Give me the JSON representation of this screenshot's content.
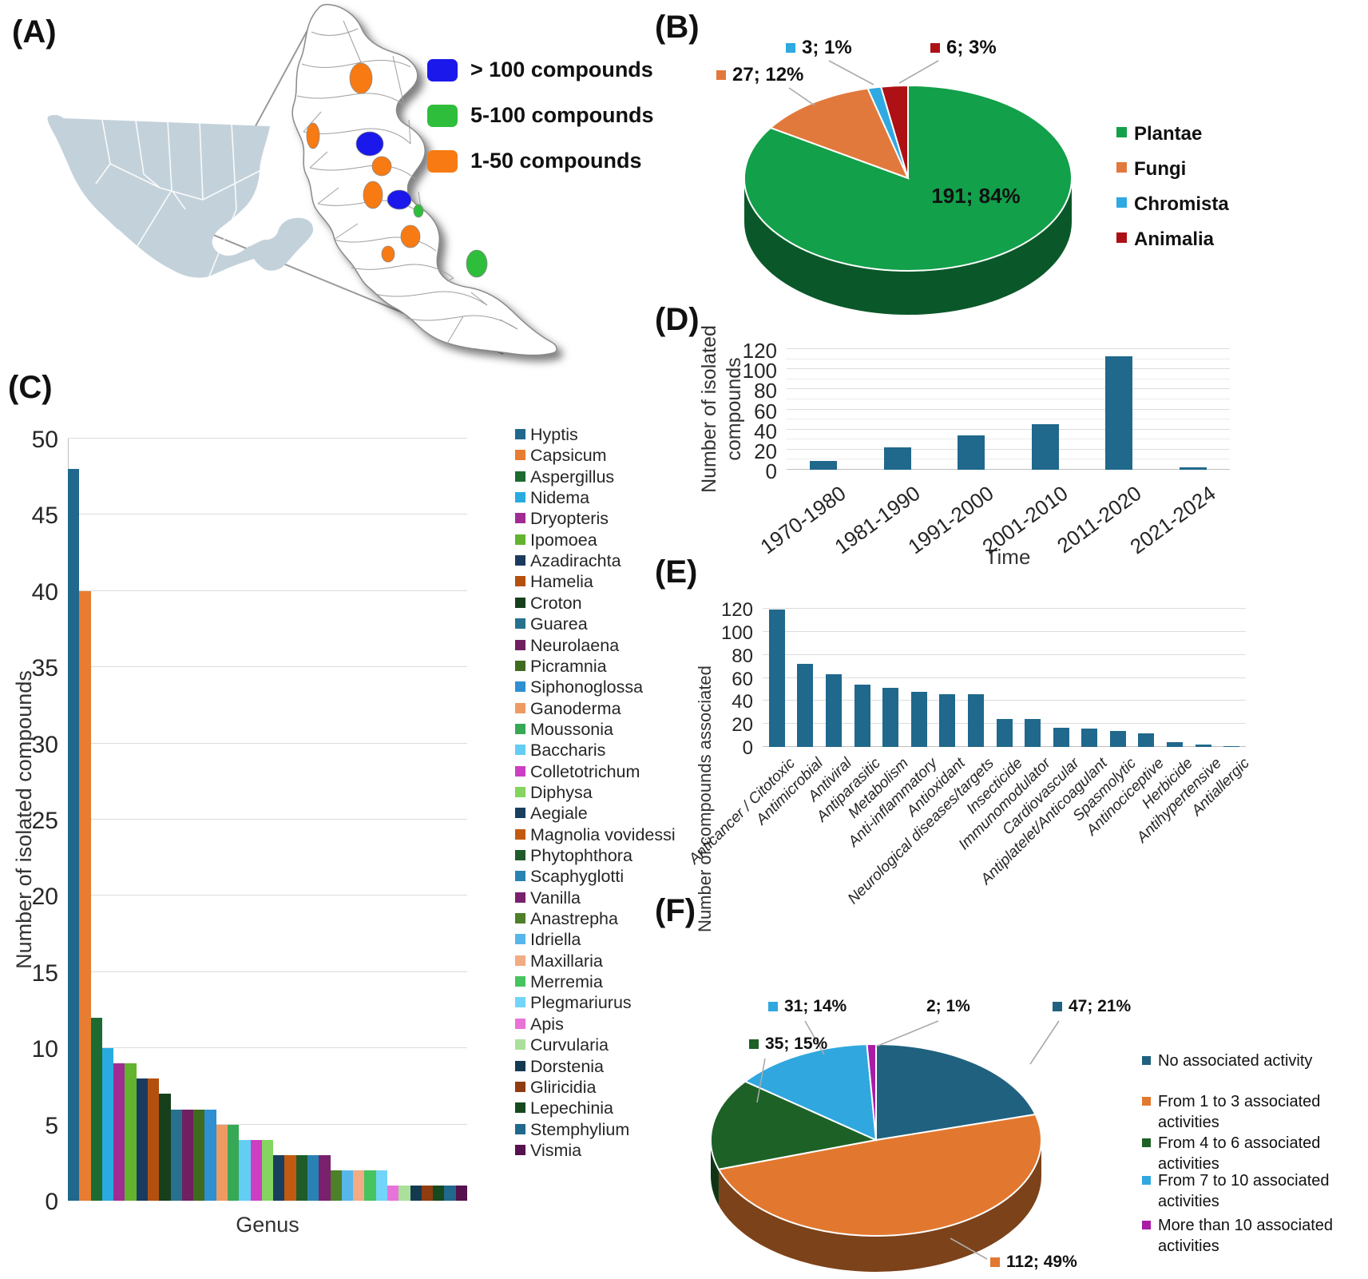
{
  "panels": {
    "A": {
      "label": "(A)",
      "legend": [
        {
          "label": "> 100 compounds",
          "color": "#1a18ea"
        },
        {
          "label": "5-100 compounds",
          "color": "#2fbe3b"
        },
        {
          "label": "1-50 compounds",
          "color": "#f87a12"
        }
      ]
    },
    "B": {
      "label": "(B)"
    },
    "C": {
      "label": "(C)"
    },
    "D": {
      "label": "(D)"
    },
    "E": {
      "label": "(E)"
    },
    "F": {
      "label": "(F)"
    }
  },
  "chart_data": [
    {
      "id": "kingdom-pie",
      "type": "pie",
      "labels": [
        "Plantae",
        "Fungi",
        "Chromista",
        "Animalia"
      ],
      "values": [
        191,
        27,
        3,
        6
      ],
      "data_labels": [
        "191; 84%",
        "27; 12%",
        "3; 1%",
        "6; 3%"
      ],
      "colors": [
        "#12a04a",
        "#e2793c",
        "#2fa9e1",
        "#ad1015"
      ],
      "legend_position": "right"
    },
    {
      "id": "genus-bar",
      "type": "bar",
      "xlabel": "Genus",
      "ylabel": "Number of isolated compounds",
      "ylim": [
        0,
        50
      ],
      "ytick_step": 5,
      "grid": "on",
      "legend_position": "right",
      "categories": [
        "Hyptis",
        "Capsicum",
        "Aspergillus",
        "Nidema",
        "Dryopteris",
        "Ipomoea",
        "Azadirachta",
        "Hamelia",
        "Croton",
        "Guarea",
        "Neurolaena",
        "Picramnia",
        "Siphonoglossa",
        "Ganoderma",
        "Moussonia",
        "Baccharis",
        "Colletotrichum",
        "Diphysa",
        "Aegiale",
        "Magnolia vovidessi",
        "Phytophthora",
        "Scaphyglotti",
        "Vanilla",
        "Anastrepha",
        "Idriella",
        "Maxillaria",
        "Merremia",
        "Plegmariurus",
        "Apis",
        "Curvularia",
        "Dorstenia",
        "Gliricidia",
        "Lepechinia",
        "Stemphylium",
        "Vismia"
      ],
      "values": [
        48,
        40,
        12,
        10,
        9,
        9,
        8,
        8,
        7,
        6,
        6,
        6,
        6,
        5,
        5,
        4,
        4,
        4,
        3,
        3,
        3,
        3,
        3,
        2,
        2,
        2,
        2,
        2,
        1,
        1,
        1,
        1,
        1,
        1,
        1
      ],
      "colors": [
        "#20688c",
        "#e87d31",
        "#1d6b30",
        "#29abe2",
        "#a02b93",
        "#63b32e",
        "#1b3a5f",
        "#b4500e",
        "#173f1c",
        "#27718f",
        "#702060",
        "#3f6b1f",
        "#2e8fd1",
        "#f09a63",
        "#37a855",
        "#64cdf4",
        "#cc3fc2",
        "#84d45f",
        "#193f5e",
        "#c25a12",
        "#1f5c2a",
        "#2a82b4",
        "#79216d",
        "#4e7f29",
        "#57b7ea",
        "#f2ab84",
        "#46c45f",
        "#72d4f8",
        "#e873d8",
        "#abdf9a",
        "#143a52",
        "#8f3c10",
        "#164a1e",
        "#20688c",
        "#55124d"
      ]
    },
    {
      "id": "time-bar",
      "type": "bar",
      "xlabel": "Time",
      "ylabel": "Number of isolated compounds",
      "ylim": [
        0,
        120
      ],
      "ytick_step": 20,
      "grid": "on",
      "categories": [
        "1970-1980",
        "1981-1990",
        "1991-2000",
        "2001-2010",
        "2011-2020",
        "2021-2024"
      ],
      "values": [
        9,
        22,
        34,
        45,
        113,
        2
      ],
      "bar_color": "#20688c"
    },
    {
      "id": "activity-bar",
      "type": "bar",
      "xlabel": "",
      "ylabel": "Number of compounds associated",
      "ylim": [
        0,
        120
      ],
      "ytick_step": 20,
      "grid": "on",
      "categories": [
        "Anticancer / Citotoxic",
        "Antimicrobial",
        "Antiviral",
        "Antiparasitic",
        "Metabolism",
        "Anti-inflammatory",
        "Antioxidant",
        "Neurological diseases/targets",
        "Insecticide",
        "Immunomodulator",
        "Cardiovascular",
        "Antiplatelet/Anticoagulant",
        "Spasmolytic",
        "Antinociceptive",
        "Herbicide",
        "Antihypertensive",
        "Antiallergic"
      ],
      "values": [
        119,
        72,
        63,
        54,
        51,
        48,
        46,
        46,
        24,
        24,
        17,
        16,
        14,
        12,
        4,
        2,
        1
      ],
      "bar_color": "#20688c"
    },
    {
      "id": "activities-pie",
      "type": "pie",
      "labels": [
        "No associated activity",
        "From 1 to 3 associated activities",
        "From 4 to 6 associated activities",
        "From 7 to 10 associated activities",
        "More than 10 associated activities"
      ],
      "values": [
        47,
        112,
        35,
        31,
        2
      ],
      "data_labels": [
        "47; 21%",
        "112; 49%",
        "35; 15%",
        "31; 14%",
        "2; 1%"
      ],
      "colors": [
        "#20617f",
        "#e2782f",
        "#1d6127",
        "#30a8df",
        "#a81ca6"
      ],
      "legend_position": "right"
    }
  ]
}
